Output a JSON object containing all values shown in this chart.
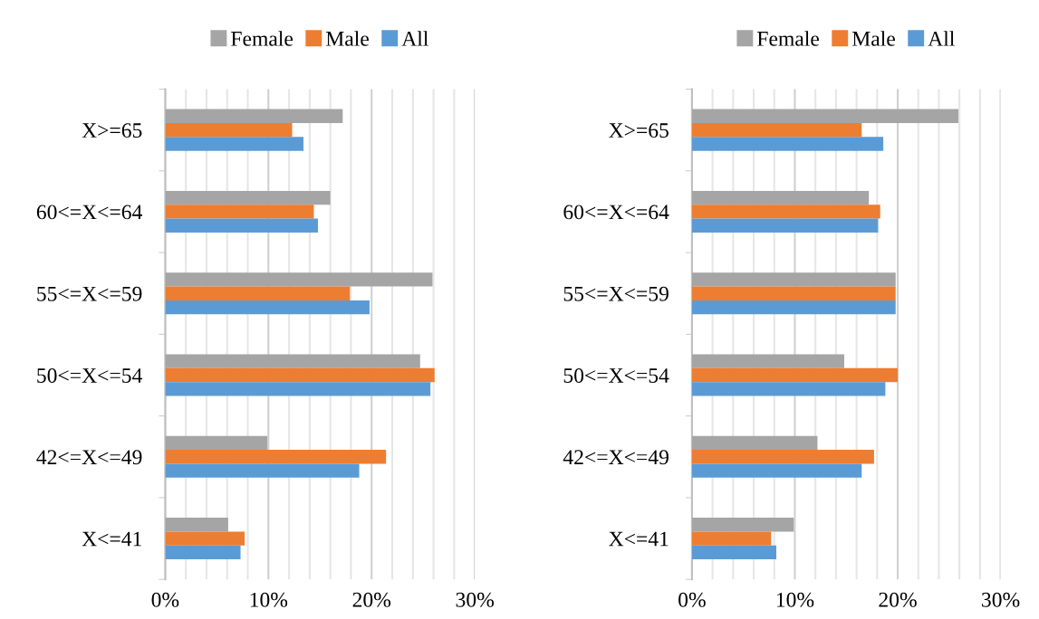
{
  "chart_data": [
    {
      "type": "bar",
      "orientation": "horizontal",
      "categories": [
        "X>=65",
        "60<=X<=64",
        "55<=X<=59",
        "50<=X<=54",
        "42<=X<=49",
        "X<=41"
      ],
      "series": [
        {
          "name": "Female",
          "color": "#a5a5a5",
          "values": [
            17.2,
            16.0,
            25.9,
            24.7,
            9.9,
            6.1
          ]
        },
        {
          "name": "Male",
          "color": "#ed7d31",
          "values": [
            12.3,
            14.4,
            17.9,
            26.1,
            21.4,
            7.7
          ]
        },
        {
          "name": "All",
          "color": "#5b9bd5",
          "values": [
            13.4,
            14.8,
            19.8,
            25.7,
            18.8,
            7.3
          ]
        }
      ],
      "xlim": [
        0,
        30
      ],
      "xticks": [
        {
          "value": 0,
          "label": "0%"
        },
        {
          "value": 2,
          "label": null
        },
        {
          "value": 4,
          "label": null
        },
        {
          "value": 6,
          "label": null
        },
        {
          "value": 8,
          "label": null
        },
        {
          "value": 10,
          "label": "10%"
        },
        {
          "value": 12,
          "label": null
        },
        {
          "value": 14,
          "label": null
        },
        {
          "value": 16,
          "label": null
        },
        {
          "value": 18,
          "label": null
        },
        {
          "value": 20,
          "label": "20%"
        },
        {
          "value": 22,
          "label": null
        },
        {
          "value": 24,
          "label": null
        },
        {
          "value": 26,
          "label": null
        },
        {
          "value": 28,
          "label": null
        },
        {
          "value": 30,
          "label": "30%"
        }
      ],
      "grid": "x",
      "legend": "top"
    },
    {
      "type": "bar",
      "orientation": "horizontal",
      "categories": [
        "X>=65",
        "60<=X<=64",
        "55<=X<=59",
        "50<=X<=54",
        "42<=X<=49",
        "X<=41"
      ],
      "series": [
        {
          "name": "Female",
          "color": "#a5a5a5",
          "values": [
            25.9,
            17.2,
            19.8,
            14.8,
            12.2,
            9.9
          ]
        },
        {
          "name": "Male",
          "color": "#ed7d31",
          "values": [
            16.5,
            18.3,
            19.8,
            20.0,
            17.7,
            7.7
          ]
        },
        {
          "name": "All",
          "color": "#5b9bd5",
          "values": [
            18.6,
            18.1,
            19.8,
            18.8,
            16.5,
            8.2
          ]
        }
      ],
      "xlim": [
        0,
        30
      ],
      "xticks": [
        {
          "value": 0,
          "label": "0%"
        },
        {
          "value": 2,
          "label": null
        },
        {
          "value": 4,
          "label": null
        },
        {
          "value": 6,
          "label": null
        },
        {
          "value": 8,
          "label": null
        },
        {
          "value": 10,
          "label": "10%"
        },
        {
          "value": 12,
          "label": null
        },
        {
          "value": 14,
          "label": null
        },
        {
          "value": 16,
          "label": null
        },
        {
          "value": 18,
          "label": null
        },
        {
          "value": 20,
          "label": "20%"
        },
        {
          "value": 22,
          "label": null
        },
        {
          "value": 24,
          "label": null
        },
        {
          "value": 26,
          "label": null
        },
        {
          "value": 28,
          "label": null
        },
        {
          "value": 30,
          "label": "30%"
        }
      ],
      "grid": "x",
      "legend": "top"
    }
  ]
}
